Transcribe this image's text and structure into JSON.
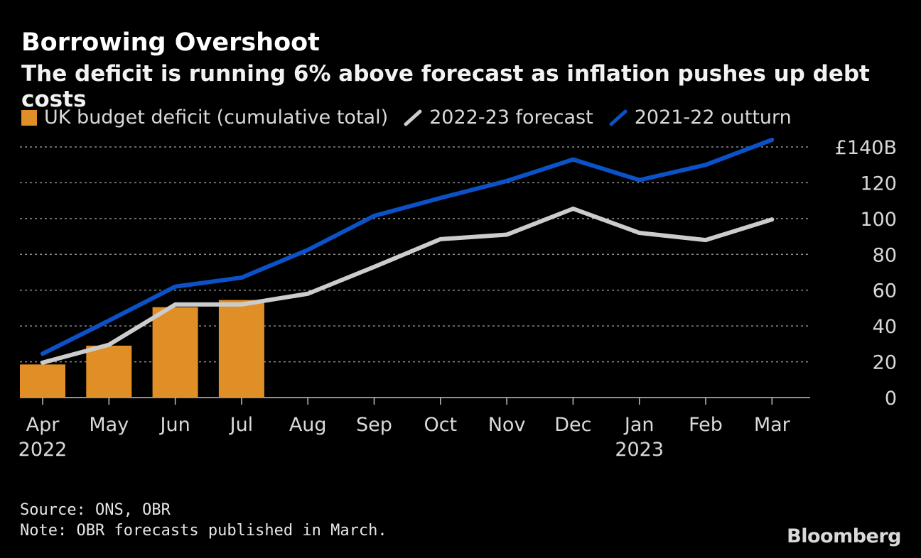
{
  "header": {
    "title": "Borrowing Overshoot",
    "subtitle": "The deficit is running 6% above forecast as inflation pushes up debt costs"
  },
  "footer": {
    "source": "Source: ONS, OBR",
    "note": "Note: OBR forecasts published in March.",
    "brand": "Bloomberg"
  },
  "chart_data": {
    "type": "bar+line",
    "categories": [
      "Apr",
      "May",
      "Jun",
      "Jul",
      "Aug",
      "Sep",
      "Oct",
      "Nov",
      "Dec",
      "Jan",
      "Feb",
      "Mar"
    ],
    "year_labels": [
      "2022",
      "",
      "",
      "",
      "",
      "",
      "",
      "",
      "",
      "2023",
      "",
      ""
    ],
    "series": [
      {
        "name": "UK budget deficit (cumulative total)",
        "type": "bar",
        "color": "#e08f26",
        "values": [
          18.5,
          29,
          50.5,
          54.5,
          null,
          null,
          null,
          null,
          null,
          null,
          null,
          null
        ]
      },
      {
        "name": "2022-23 forecast",
        "type": "line",
        "color": "#cccccc",
        "values": [
          19.5,
          29.5,
          52,
          52,
          58,
          73,
          88.5,
          91,
          105.5,
          92,
          88,
          99.5
        ]
      },
      {
        "name": "2021-22 outturn",
        "type": "line",
        "color": "#0b52c9",
        "values": [
          24.5,
          43,
          62,
          67,
          82.5,
          101.5,
          111.5,
          121,
          133,
          121.5,
          130,
          144
        ]
      }
    ],
    "ylim": [
      0,
      140
    ],
    "yticks": [
      0,
      20,
      40,
      60,
      80,
      100,
      120,
      140
    ],
    "ytick_labels": [
      "0",
      "20",
      "40",
      "60",
      "80",
      "100",
      "120",
      "£140B"
    ],
    "grid": true,
    "legend_position": "top-left",
    "y_axis_side": "right"
  }
}
